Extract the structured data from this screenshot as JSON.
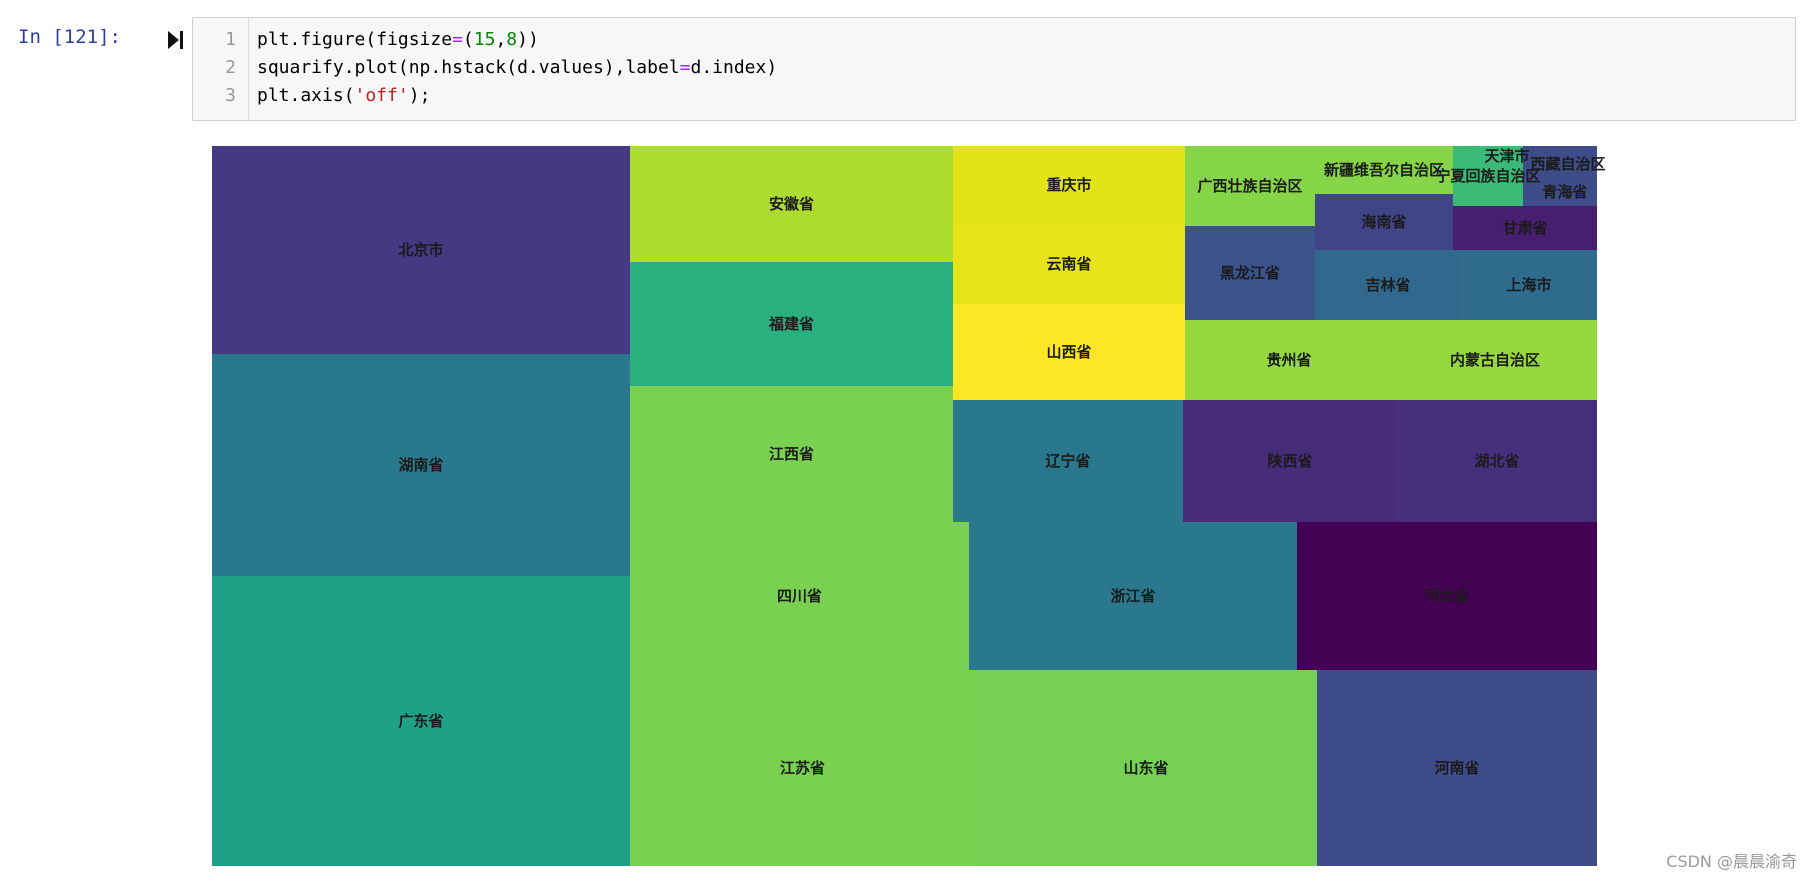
{
  "cell": {
    "prompt": "In  [121]:",
    "run_icon": "run-cell-icon",
    "line_numbers": [
      "1",
      "2",
      "3"
    ],
    "code": [
      {
        "tokens": [
          {
            "t": "plt.figure(figsize",
            "c": ""
          },
          {
            "t": "=",
            "c": "op"
          },
          {
            "t": "(",
            "c": ""
          },
          {
            "t": "15",
            "c": "num"
          },
          {
            "t": ",",
            "c": ""
          },
          {
            "t": "8",
            "c": "num"
          },
          {
            "t": "))",
            "c": ""
          }
        ]
      },
      {
        "tokens": [
          {
            "t": "squarify.plot(np.hstack(d.values),label",
            "c": ""
          },
          {
            "t": "=",
            "c": "op"
          },
          {
            "t": "d.index)",
            "c": ""
          }
        ]
      },
      {
        "tokens": [
          {
            "t": "plt.axis(",
            "c": ""
          },
          {
            "t": "'off'",
            "c": "str"
          },
          {
            "t": ");",
            "c": ""
          }
        ]
      }
    ]
  },
  "chart_data": {
    "type": "treemap",
    "title": "",
    "axis": "off",
    "colormap": "viridis",
    "labels": [
      "北京市",
      "湖南省",
      "广东省",
      "安徽省",
      "福建省",
      "江西省",
      "四川省",
      "江苏省",
      "重庆市",
      "云南省",
      "山西省",
      "辽宁省",
      "浙江省",
      "山东省",
      "广西壮族自治区",
      "黑龙江省",
      "新疆维吾尔自治区",
      "海南省",
      "吉林省",
      "宁夏回族自治区",
      "甘肃省",
      "上海市",
      "天津市",
      "青海省",
      "西藏自治区",
      "贵州省",
      "内蒙古自治区",
      "陕西省",
      "湖北省",
      "河北省",
      "河南省"
    ],
    "colors": [
      "#443983",
      "#2a788e",
      "#1fa187",
      "#addc30",
      "#2ab07f",
      "#7ad151",
      "#7ad151",
      "#7ad151",
      "#e2e418",
      "#e7e419",
      "#fde725",
      "#2a788e",
      "#2a788e",
      "#75d054",
      "#86d549",
      "#3b528b",
      "#86d549",
      "#414487",
      "#30688e",
      "#3aba76",
      "#481f70",
      "#2f6c8e",
      "#3e4c8a",
      "#3e4c8a",
      "#3e4c8a",
      "#95d840",
      "#95d840",
      "#472c7a",
      "#46307e",
      "#440154",
      "#3e4c8a"
    ]
  },
  "watermark": "CSDN @晨晨渝奇"
}
